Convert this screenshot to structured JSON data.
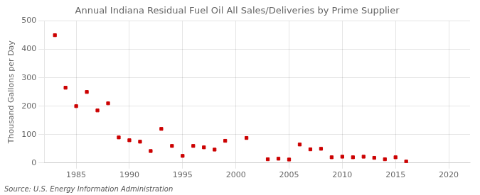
{
  "chart_data": {
    "type": "scatter",
    "title": "Annual Indiana Residual Fuel Oil All Sales/Deliveries by Prime Supplier",
    "ylabel": "Thousand Gallons per Day",
    "source": "Source: U.S. Energy Information Administration",
    "x": [
      1983,
      1984,
      1985,
      1986,
      1987,
      1988,
      1989,
      1990,
      1991,
      1992,
      1993,
      1994,
      1995,
      1996,
      1997,
      1998,
      1999,
      2001,
      2003,
      2004,
      2005,
      2006,
      2007,
      2008,
      2009,
      2010,
      2011,
      2012,
      2013,
      2014,
      2015,
      2016
    ],
    "values": [
      450,
      265,
      200,
      250,
      185,
      210,
      90,
      80,
      75,
      42,
      120,
      60,
      25,
      60,
      55,
      47,
      78,
      88,
      13,
      15,
      12,
      65,
      48,
      50,
      20,
      22,
      20,
      22,
      18,
      13,
      20,
      5
    ],
    "color": "#cc0000",
    "marker": "square",
    "xlim": [
      1982,
      2022
    ],
    "ylim": [
      0,
      500
    ],
    "xticks": [
      1985,
      1990,
      1995,
      2000,
      2005,
      2010,
      2015,
      2020
    ],
    "yticks": [
      0,
      100,
      200,
      300,
      400,
      500
    ],
    "grid": true
  }
}
